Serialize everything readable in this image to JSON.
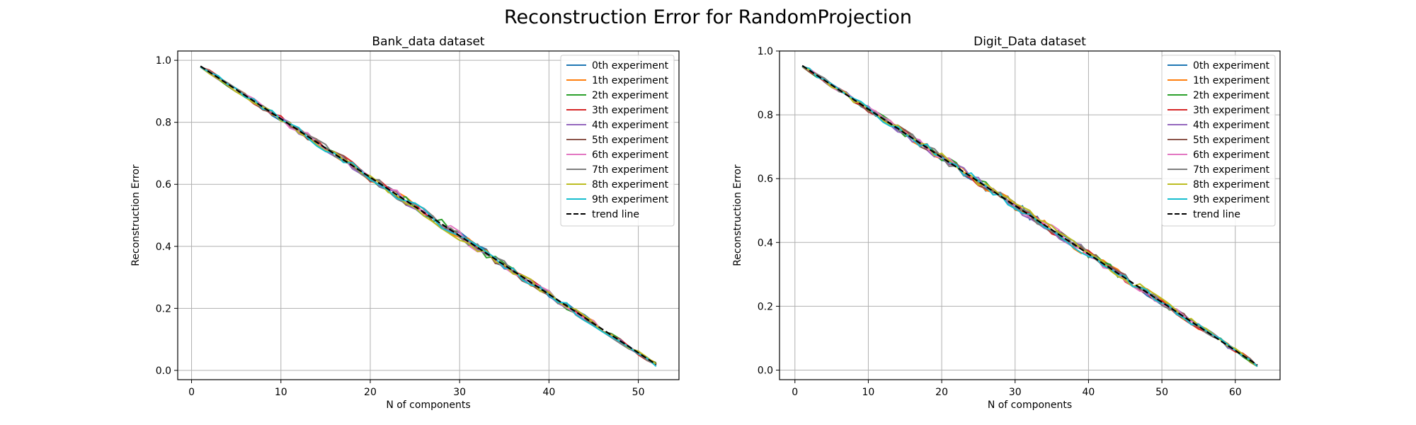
{
  "figure": {
    "suptitle": "Reconstruction Error for RandomProjection"
  },
  "chart_data": [
    {
      "type": "line",
      "title": "Bank_data dataset",
      "xlabel": "N of components",
      "ylabel": "Reconstruction Error",
      "xlim": [
        -1.55,
        54.55
      ],
      "ylim": [
        -0.03,
        1.03
      ],
      "xticks": [
        0,
        10,
        20,
        30,
        40,
        50
      ],
      "yticks": [
        0.0,
        0.2,
        0.4,
        0.6,
        0.8,
        1.0
      ],
      "grid": true,
      "legend_position": "top-right",
      "series_count": 10,
      "x_start": 1,
      "x_end": 52,
      "series": [
        {
          "name": "0th experiment",
          "color": "#1f77b4",
          "seed": 11
        },
        {
          "name": "1th experiment",
          "color": "#ff7f0e",
          "seed": 23
        },
        {
          "name": "2th experiment",
          "color": "#2ca02c",
          "seed": 37
        },
        {
          "name": "3th experiment",
          "color": "#d62728",
          "seed": 41
        },
        {
          "name": "4th experiment",
          "color": "#9467bd",
          "seed": 53
        },
        {
          "name": "5th experiment",
          "color": "#8c564b",
          "seed": 67
        },
        {
          "name": "6th experiment",
          "color": "#e377c2",
          "seed": 71
        },
        {
          "name": "7th experiment",
          "color": "#7f7f7f",
          "seed": 83
        },
        {
          "name": "8th experiment",
          "color": "#bcbd22",
          "seed": 97
        },
        {
          "name": "9th experiment",
          "color": "#17becf",
          "seed": 101
        }
      ],
      "trend": {
        "name": "trend line",
        "color": "#000000",
        "x": [
          1,
          52
        ],
        "y": [
          0.981,
          0.019
        ]
      }
    },
    {
      "type": "line",
      "title": "Digit_Data dataset",
      "xlabel": "N of components",
      "ylabel": "Reconstruction Error",
      "xlim": [
        -2.1,
        66.1
      ],
      "ylim": [
        -0.03,
        1.0
      ],
      "xticks": [
        0,
        10,
        20,
        30,
        40,
        50,
        60
      ],
      "yticks": [
        0.0,
        0.2,
        0.4,
        0.6,
        0.8,
        1.0
      ],
      "grid": true,
      "legend_position": "top-right",
      "series_count": 10,
      "x_start": 1,
      "x_end": 63,
      "series": [
        {
          "name": "0th experiment",
          "color": "#1f77b4",
          "seed": 13
        },
        {
          "name": "1th experiment",
          "color": "#ff7f0e",
          "seed": 29
        },
        {
          "name": "2th experiment",
          "color": "#2ca02c",
          "seed": 31
        },
        {
          "name": "3th experiment",
          "color": "#d62728",
          "seed": 43
        },
        {
          "name": "4th experiment",
          "color": "#9467bd",
          "seed": 59
        },
        {
          "name": "5th experiment",
          "color": "#8c564b",
          "seed": 61
        },
        {
          "name": "6th experiment",
          "color": "#e377c2",
          "seed": 73
        },
        {
          "name": "7th experiment",
          "color": "#7f7f7f",
          "seed": 89
        },
        {
          "name": "8th experiment",
          "color": "#bcbd22",
          "seed": 103
        },
        {
          "name": "9th experiment",
          "color": "#17becf",
          "seed": 107
        }
      ],
      "trend": {
        "name": "trend line",
        "color": "#000000",
        "x": [
          1,
          63
        ],
        "y": [
          0.954,
          0.016
        ]
      }
    }
  ]
}
